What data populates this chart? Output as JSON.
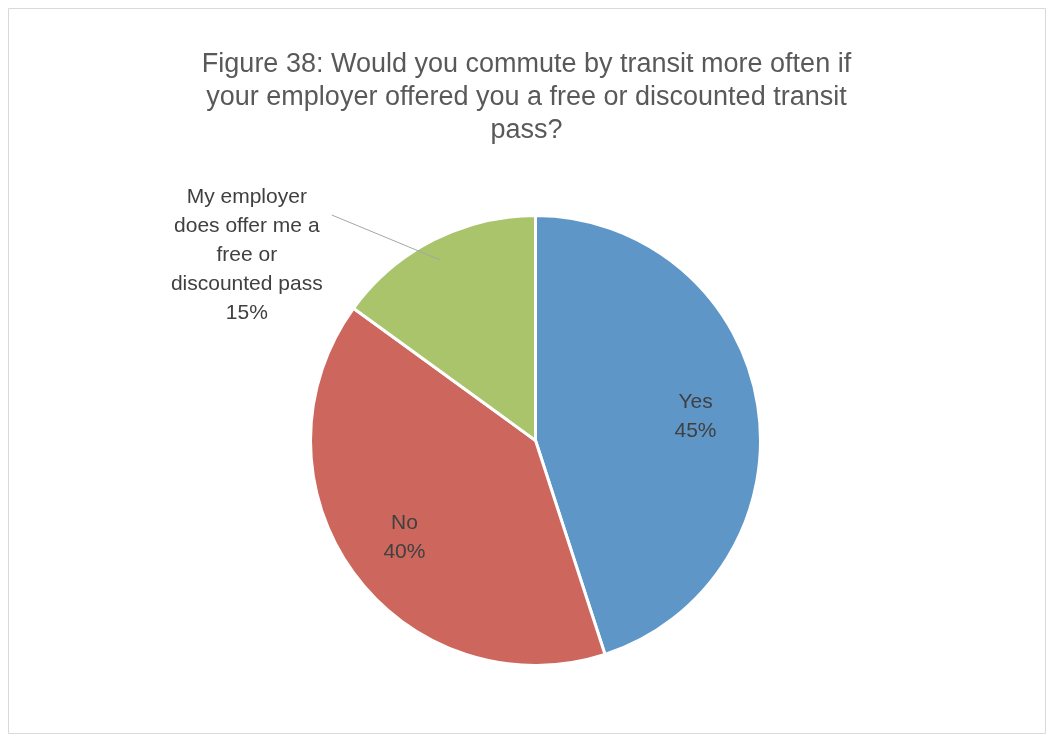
{
  "chart_data": {
    "type": "pie",
    "title": "Figure 38: Would you commute by transit more often if your employer offered you a free or discounted transit pass?",
    "categories": [
      "Yes",
      "No",
      "My employer does offer me a free or discounted pass"
    ],
    "values": [
      45,
      40,
      15
    ],
    "colors": [
      "#5f96c8",
      "#cd665c",
      "#a9c46b"
    ],
    "value_labels": [
      "45%",
      "40%",
      "15%"
    ]
  }
}
